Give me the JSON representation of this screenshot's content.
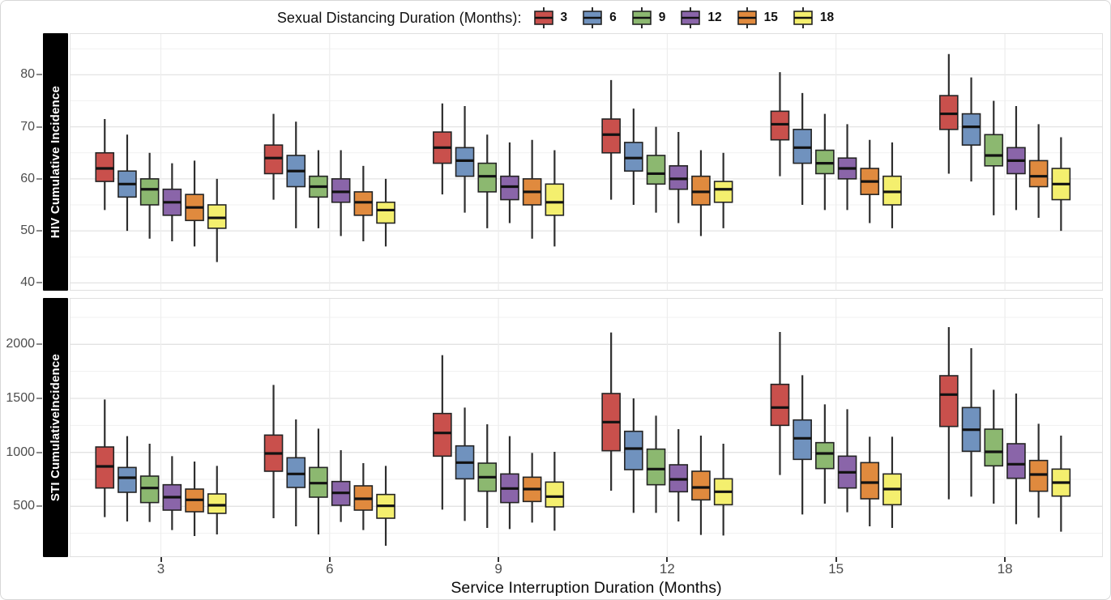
{
  "legend": {
    "title": "Sexual Distancing Duration (Months):",
    "items": [
      {
        "label": "3",
        "color": "#C9504C"
      },
      {
        "label": "6",
        "color": "#7092BE"
      },
      {
        "label": "9",
        "color": "#8CB870"
      },
      {
        "label": "12",
        "color": "#8A65A9"
      },
      {
        "label": "15",
        "color": "#E08A3E"
      },
      {
        "label": "18",
        "color": "#F4EF6E"
      }
    ]
  },
  "chart_data": {
    "type": "boxplot",
    "title": "",
    "xlabel": "Service Interruption Duration (Months)",
    "legend_title": "Sexual Distancing Duration (Months):",
    "legend_position": "top",
    "grid": true,
    "x_categories": [
      "3",
      "6",
      "9",
      "12",
      "15",
      "18"
    ],
    "series_labels": [
      "3",
      "6",
      "9",
      "12",
      "15",
      "18"
    ],
    "series_colors": [
      "#C9504C",
      "#7092BE",
      "#8CB870",
      "#8A65A9",
      "#E08A3E",
      "#F4EF6E"
    ],
    "box_value_order": [
      "min",
      "q1",
      "median",
      "q3",
      "max"
    ],
    "panels": [
      {
        "label": "HIV Cumulative Incidence",
        "ylim": [
          38.5,
          88
        ],
        "yticks_major": [
          40,
          50,
          60,
          70,
          80
        ],
        "yticks_minor": [
          45,
          55,
          65,
          75,
          85
        ],
        "groups": [
          {
            "x": "3",
            "boxes": [
              [
                54,
                59.5,
                62,
                65,
                71.5
              ],
              [
                50,
                56.5,
                59,
                61.5,
                68.5
              ],
              [
                48.5,
                55,
                58,
                60,
                65
              ],
              [
                48,
                53,
                55.5,
                58,
                63
              ],
              [
                47,
                52,
                54.5,
                57,
                63.5
              ],
              [
                44,
                50.5,
                52.5,
                55,
                60
              ]
            ]
          },
          {
            "x": "6",
            "boxes": [
              [
                56,
                61,
                64,
                66.5,
                72.5
              ],
              [
                50.5,
                58.5,
                61.5,
                64.5,
                71
              ],
              [
                50.5,
                56.5,
                58.5,
                60.5,
                65.5
              ],
              [
                49,
                55.5,
                57.5,
                60,
                65.5
              ],
              [
                48,
                53,
                55.5,
                57.5,
                62.5
              ],
              [
                47,
                51.5,
                54,
                55.5,
                60
              ]
            ]
          },
          {
            "x": "9",
            "boxes": [
              [
                57,
                63,
                66,
                69,
                74.5
              ],
              [
                53.5,
                60.5,
                63.5,
                66,
                74
              ],
              [
                50.5,
                57.5,
                60.5,
                63,
                68.5
              ],
              [
                51.5,
                56,
                58.5,
                60.5,
                67
              ],
              [
                48.5,
                55,
                57.5,
                60,
                67.5
              ],
              [
                47,
                53,
                55.5,
                59,
                65.5
              ]
            ]
          },
          {
            "x": "12",
            "boxes": [
              [
                56,
                65,
                68.5,
                71.5,
                79
              ],
              [
                55,
                61.5,
                64,
                67,
                73.5
              ],
              [
                53.5,
                59,
                61,
                64.5,
                70
              ],
              [
                51.5,
                58,
                60,
                62.5,
                69
              ],
              [
                49,
                55,
                57.5,
                60.5,
                65.5
              ],
              [
                50.5,
                55.5,
                58,
                59.5,
                65
              ]
            ]
          },
          {
            "x": "15",
            "boxes": [
              [
                60.5,
                67.5,
                70.5,
                73,
                80.5
              ],
              [
                55,
                63,
                66,
                69.5,
                76.5
              ],
              [
                54,
                61,
                63,
                65.5,
                72.5
              ],
              [
                54,
                60,
                62,
                64,
                70.5
              ],
              [
                51.5,
                57,
                59.5,
                62,
                67.5
              ],
              [
                50.5,
                55,
                57.5,
                60.5,
                67
              ]
            ]
          },
          {
            "x": "18",
            "boxes": [
              [
                61,
                69.5,
                72.5,
                76,
                84
              ],
              [
                59.5,
                66.5,
                70,
                72.5,
                79.5
              ],
              [
                53,
                62.5,
                64.5,
                68.5,
                75
              ],
              [
                54,
                61,
                63.5,
                66,
                74
              ],
              [
                52.5,
                58.5,
                60.5,
                63.5,
                70.5
              ],
              [
                50,
                56,
                59,
                62,
                68
              ]
            ]
          }
        ]
      },
      {
        "label": "STI CumulativeIncidence",
        "ylim": [
          30,
          2430
        ],
        "yticks_major": [
          500,
          1000,
          1500,
          2000
        ],
        "yticks_minor": [
          250,
          750,
          1250,
          1750,
          2250
        ],
        "groups": [
          {
            "x": "3",
            "boxes": [
              [
                400,
                670,
                870,
                1050,
                1490
              ],
              [
                360,
                630,
                765,
                860,
                1150
              ],
              [
                355,
                535,
                670,
                780,
                1080
              ],
              [
                280,
                465,
                585,
                700,
                965
              ],
              [
                225,
                450,
                560,
                660,
                915
              ],
              [
                240,
                435,
                510,
                615,
                875
              ]
            ]
          },
          {
            "x": "6",
            "boxes": [
              [
                390,
                825,
                990,
                1160,
                1625
              ],
              [
                315,
                675,
                800,
                950,
                1305
              ],
              [
                240,
                585,
                715,
                860,
                1220
              ],
              [
                355,
                510,
                625,
                730,
                1020
              ],
              [
                280,
                465,
                570,
                690,
                900
              ],
              [
                135,
                390,
                505,
                610,
                875
              ]
            ]
          },
          {
            "x": "9",
            "boxes": [
              [
                470,
                965,
                1180,
                1360,
                1900
              ],
              [
                365,
                755,
                905,
                1060,
                1415
              ],
              [
                300,
                640,
                770,
                900,
                1260
              ],
              [
                290,
                535,
                665,
                800,
                1150
              ],
              [
                350,
                545,
                660,
                770,
                995
              ],
              [
                275,
                495,
                590,
                725,
                1005
              ]
            ]
          },
          {
            "x": "12",
            "boxes": [
              [
                645,
                1015,
                1280,
                1545,
                2110
              ],
              [
                440,
                840,
                1035,
                1195,
                1500
              ],
              [
                440,
                700,
                845,
                1030,
                1340
              ],
              [
                360,
                635,
                750,
                885,
                1215
              ],
              [
                235,
                560,
                675,
                825,
                1155
              ],
              [
                230,
                515,
                635,
                755,
                1080
              ]
            ]
          },
          {
            "x": "15",
            "boxes": [
              [
                790,
                1250,
                1415,
                1630,
                2115
              ],
              [
                425,
                935,
                1130,
                1300,
                1715
              ],
              [
                525,
                850,
                990,
                1090,
                1445
              ],
              [
                445,
                670,
                815,
                965,
                1400
              ],
              [
                315,
                570,
                720,
                905,
                1145
              ],
              [
                300,
                515,
                660,
                800,
                1145
              ]
            ]
          },
          {
            "x": "18",
            "boxes": [
              [
                565,
                1240,
                1535,
                1710,
                2160
              ],
              [
                590,
                1010,
                1210,
                1415,
                1965
              ],
              [
                525,
                875,
                1005,
                1215,
                1580
              ],
              [
                335,
                760,
                890,
                1080,
                1545
              ],
              [
                395,
                640,
                795,
                925,
                1265
              ],
              [
                265,
                595,
                720,
                845,
                1155
              ]
            ]
          }
        ]
      }
    ],
    "style": {
      "grid_major_color": "#e3e3e3",
      "grid_minor_color": "#f1f1f1",
      "grid_vertical_color": "#ededed",
      "panel_border_color": "#e0e0e0",
      "whisker_color": "#2e2e2e",
      "box_border_color": "#242424",
      "median_color": "#121212",
      "strip_bg": "#000000",
      "strip_text": "#ffffff",
      "tick_text": "#4d4d4d"
    }
  }
}
